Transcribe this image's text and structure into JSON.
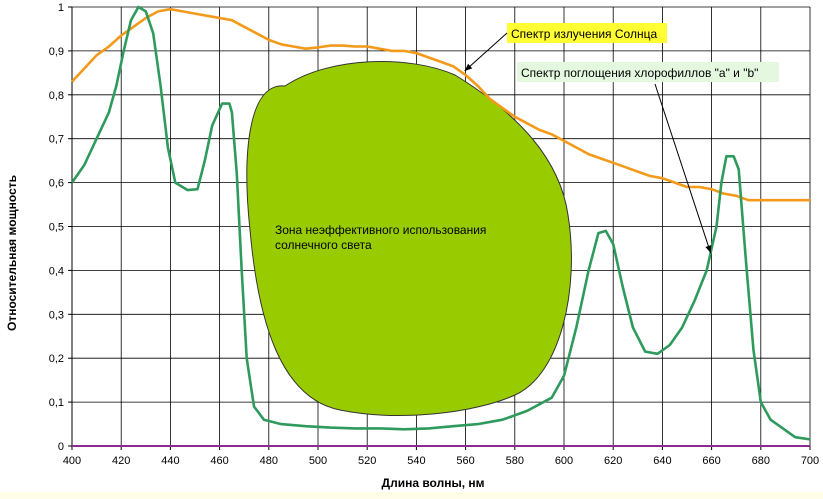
{
  "chart_data": {
    "type": "line",
    "xlabel": "Длина волны, нм",
    "ylabel": "Относительная мощность",
    "xlim": [
      400,
      700
    ],
    "ylim": [
      0,
      1
    ],
    "x_ticks": [
      "400",
      "420",
      "440",
      "460",
      "480",
      "500",
      "520",
      "540",
      "560",
      "580",
      "600",
      "620",
      "640",
      "660",
      "680",
      "700"
    ],
    "y_ticks": [
      "0",
      "0,1",
      "0,2",
      "0,3",
      "0,4",
      "0,5",
      "0,6",
      "0,7",
      "0,8",
      "0,9",
      "1"
    ],
    "grid": true,
    "series": [
      {
        "name": "Спектр излучения Солнца",
        "color": "#f39a1b",
        "points": [
          [
            400,
            0.83
          ],
          [
            405,
            0.86
          ],
          [
            410,
            0.89
          ],
          [
            415,
            0.91
          ],
          [
            420,
            0.935
          ],
          [
            425,
            0.955
          ],
          [
            430,
            0.975
          ],
          [
            435,
            0.99
          ],
          [
            440,
            0.995
          ],
          [
            445,
            0.99
          ],
          [
            450,
            0.985
          ],
          [
            455,
            0.98
          ],
          [
            460,
            0.975
          ],
          [
            465,
            0.97
          ],
          [
            470,
            0.955
          ],
          [
            475,
            0.94
          ],
          [
            480,
            0.925
          ],
          [
            485,
            0.915
          ],
          [
            490,
            0.91
          ],
          [
            495,
            0.905
          ],
          [
            500,
            0.908
          ],
          [
            505,
            0.912
          ],
          [
            510,
            0.912
          ],
          [
            515,
            0.91
          ],
          [
            520,
            0.91
          ],
          [
            525,
            0.905
          ],
          [
            530,
            0.9
          ],
          [
            535,
            0.9
          ],
          [
            540,
            0.895
          ],
          [
            545,
            0.885
          ],
          [
            550,
            0.875
          ],
          [
            555,
            0.865
          ],
          [
            560,
            0.845
          ],
          [
            565,
            0.82
          ],
          [
            570,
            0.79
          ],
          [
            575,
            0.77
          ],
          [
            580,
            0.75
          ],
          [
            585,
            0.735
          ],
          [
            590,
            0.72
          ],
          [
            595,
            0.71
          ],
          [
            600,
            0.695
          ],
          [
            605,
            0.68
          ],
          [
            610,
            0.665
          ],
          [
            615,
            0.655
          ],
          [
            620,
            0.645
          ],
          [
            625,
            0.635
          ],
          [
            630,
            0.625
          ],
          [
            635,
            0.615
          ],
          [
            640,
            0.61
          ],
          [
            645,
            0.6
          ],
          [
            650,
            0.59
          ],
          [
            655,
            0.59
          ],
          [
            660,
            0.585
          ],
          [
            665,
            0.575
          ],
          [
            670,
            0.57
          ],
          [
            675,
            0.56
          ],
          [
            680,
            0.56
          ],
          [
            685,
            0.56
          ],
          [
            690,
            0.56
          ],
          [
            695,
            0.56
          ],
          [
            700,
            0.56
          ]
        ]
      },
      {
        "name": "Спектр поглощения хлорофиллов \"а\" и \"b\"",
        "color": "#2e9a5c",
        "points": [
          [
            400,
            0.6
          ],
          [
            405,
            0.64
          ],
          [
            410,
            0.7
          ],
          [
            415,
            0.76
          ],
          [
            418,
            0.82
          ],
          [
            421,
            0.9
          ],
          [
            424,
            0.97
          ],
          [
            427,
            1.0
          ],
          [
            430,
            0.99
          ],
          [
            433,
            0.94
          ],
          [
            436,
            0.82
          ],
          [
            439,
            0.68
          ],
          [
            442,
            0.6
          ],
          [
            447,
            0.583
          ],
          [
            451,
            0.585
          ],
          [
            454,
            0.65
          ],
          [
            457,
            0.73
          ],
          [
            461,
            0.78
          ],
          [
            464,
            0.78
          ],
          [
            465,
            0.76
          ],
          [
            467,
            0.62
          ],
          [
            469,
            0.4
          ],
          [
            471,
            0.2
          ],
          [
            474,
            0.09
          ],
          [
            478,
            0.06
          ],
          [
            485,
            0.05
          ],
          [
            495,
            0.045
          ],
          [
            505,
            0.042
          ],
          [
            515,
            0.04
          ],
          [
            525,
            0.04
          ],
          [
            535,
            0.038
          ],
          [
            545,
            0.04
          ],
          [
            555,
            0.045
          ],
          [
            565,
            0.05
          ],
          [
            575,
            0.06
          ],
          [
            585,
            0.08
          ],
          [
            595,
            0.11
          ],
          [
            600,
            0.16
          ],
          [
            605,
            0.27
          ],
          [
            610,
            0.4
          ],
          [
            614,
            0.485
          ],
          [
            617,
            0.49
          ],
          [
            620,
            0.46
          ],
          [
            624,
            0.36
          ],
          [
            628,
            0.27
          ],
          [
            633,
            0.215
          ],
          [
            638,
            0.21
          ],
          [
            643,
            0.23
          ],
          [
            648,
            0.27
          ],
          [
            653,
            0.33
          ],
          [
            658,
            0.4
          ],
          [
            662,
            0.5
          ],
          [
            664,
            0.6
          ],
          [
            666,
            0.66
          ],
          [
            669,
            0.66
          ],
          [
            671,
            0.63
          ],
          [
            674,
            0.42
          ],
          [
            677,
            0.22
          ],
          [
            680,
            0.1
          ],
          [
            684,
            0.06
          ],
          [
            689,
            0.04
          ],
          [
            694,
            0.02
          ],
          [
            700,
            0.015
          ]
        ]
      },
      {
        "name": "",
        "color": "#8b2a8f",
        "points": [
          [
            400,
            0.0
          ],
          [
            700,
            0.0
          ]
        ]
      }
    ],
    "annotations": [
      {
        "text": "Спектр излучения Солнца",
        "box_color": "#ffff33",
        "arrow_to": [
          558,
          0.845
        ]
      },
      {
        "text": "Спектр поглощения хлорофиллов \"а\" и \"b\"",
        "box_color": "#e4f8e0",
        "arrow_to": [
          658,
          0.435
        ]
      },
      {
        "lines": [
          "Зона неэффективного использования",
          "солнечного света"
        ],
        "fill": "#99cc00"
      }
    ]
  }
}
